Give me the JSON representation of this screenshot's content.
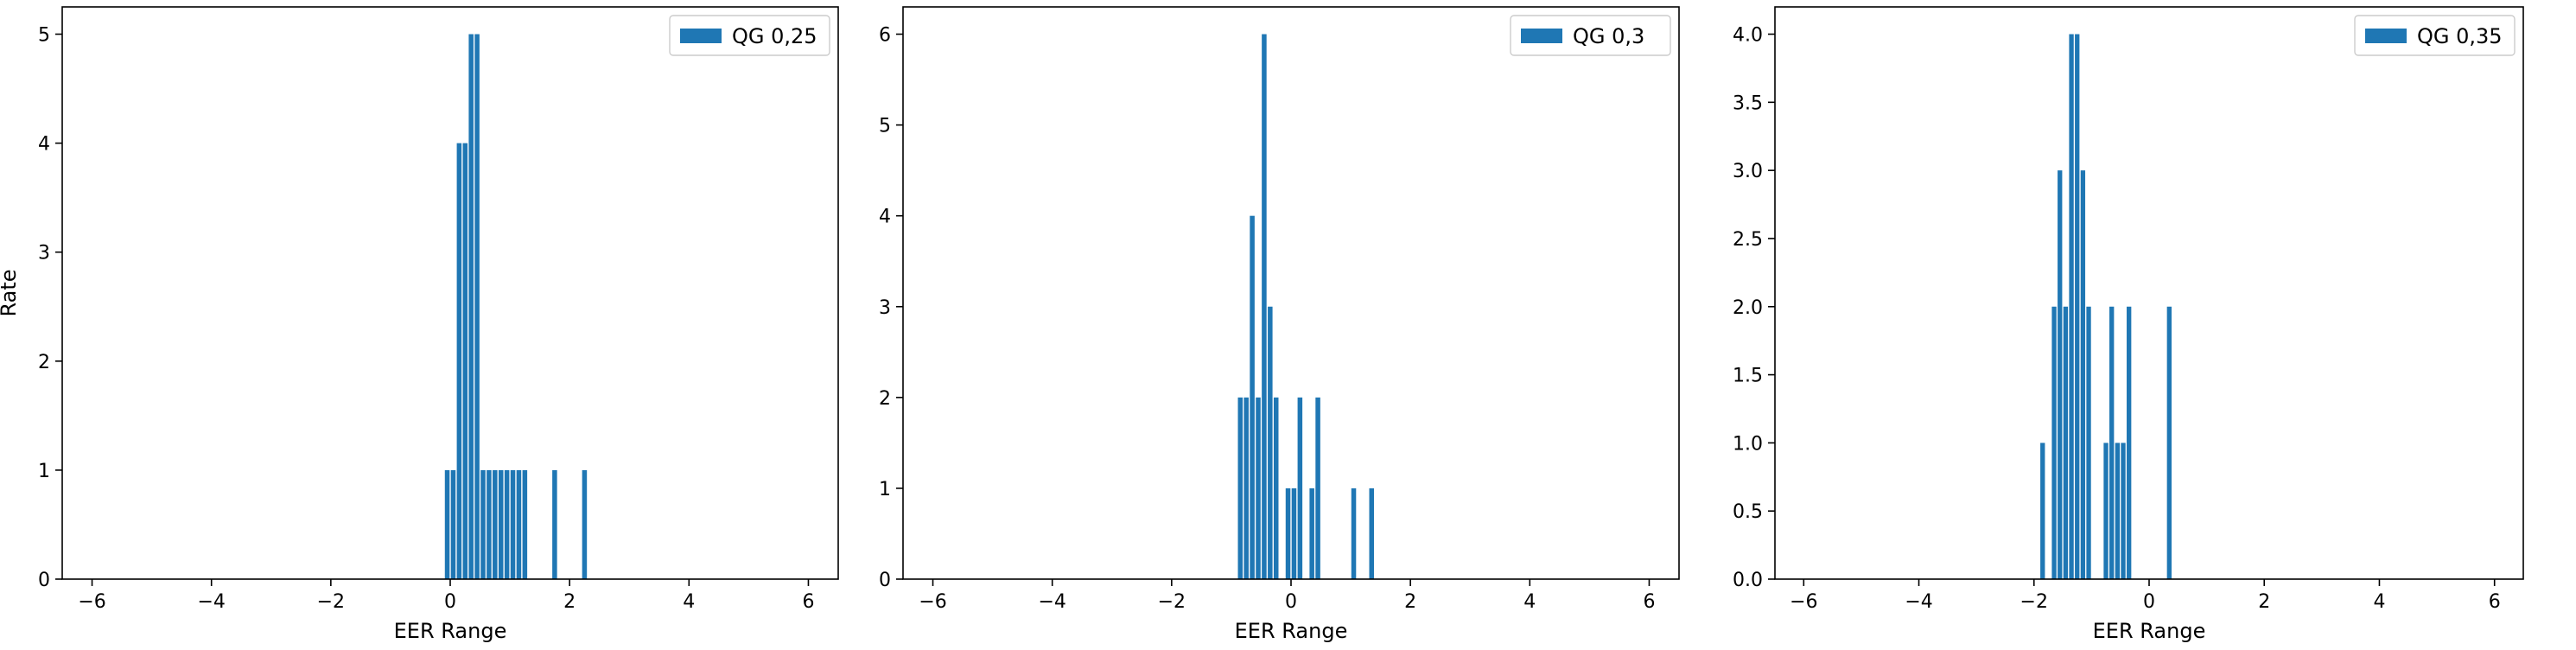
{
  "chart_data": [
    {
      "type": "bar",
      "x": [
        -0.05,
        0.05,
        0.15,
        0.25,
        0.35,
        0.45,
        0.55,
        0.65,
        0.75,
        0.85,
        0.95,
        1.05,
        1.15,
        1.25,
        1.75,
        2.25
      ],
      "values": [
        1,
        1,
        4,
        4,
        5,
        5,
        1,
        1,
        1,
        1,
        1,
        1,
        1,
        1,
        1,
        1
      ],
      "xlabel": "EER Range",
      "ylabel": "Rate",
      "xlim": [
        -6.5,
        6.5
      ],
      "ylim": [
        0,
        5.25
      ],
      "xticks": [
        -6,
        -4,
        -2,
        0,
        2,
        4,
        6
      ],
      "yticks": [
        0,
        1,
        2,
        3,
        4,
        5
      ],
      "ytick_labels": [
        "0",
        "1",
        "2",
        "3",
        "4",
        "5"
      ],
      "legend": {
        "label": "QG 0,25",
        "placement": "upper right"
      },
      "color": "#1f77b4",
      "grid": false
    },
    {
      "type": "bar",
      "x": [
        -0.85,
        -0.75,
        -0.65,
        -0.55,
        -0.45,
        -0.35,
        -0.25,
        -0.05,
        0.05,
        0.15,
        0.35,
        0.45,
        1.05,
        1.35
      ],
      "values": [
        2,
        2,
        4,
        2,
        6,
        3,
        2,
        1,
        1,
        2,
        1,
        2,
        1,
        1
      ],
      "xlabel": "EER Range",
      "ylabel": "",
      "xlim": [
        -6.5,
        6.5
      ],
      "ylim": [
        0,
        6.3
      ],
      "xticks": [
        -6,
        -4,
        -2,
        0,
        2,
        4,
        6
      ],
      "yticks": [
        0,
        1,
        2,
        3,
        4,
        5,
        6
      ],
      "ytick_labels": [
        "0",
        "1",
        "2",
        "3",
        "4",
        "5",
        "6"
      ],
      "legend": {
        "label": "QG 0,3",
        "placement": "upper right"
      },
      "color": "#1f77b4",
      "grid": false
    },
    {
      "type": "bar",
      "x": [
        -1.85,
        -1.65,
        -1.55,
        -1.45,
        -1.35,
        -1.25,
        -1.15,
        -1.05,
        -0.75,
        -0.65,
        -0.55,
        -0.45,
        -0.35,
        0.35
      ],
      "values": [
        1,
        2,
        3,
        2,
        4,
        4,
        3,
        2,
        1,
        2,
        1,
        1,
        2,
        2
      ],
      "xlabel": "EER Range",
      "ylabel": "",
      "xlim": [
        -6.5,
        6.5
      ],
      "ylim": [
        0,
        4.2
      ],
      "xticks": [
        -6,
        -4,
        -2,
        0,
        2,
        4,
        6
      ],
      "yticks": [
        0,
        0.5,
        1,
        1.5,
        2,
        2.5,
        3,
        3.5,
        4
      ],
      "ytick_labels": [
        "0.0",
        "0.5",
        "1.0",
        "1.5",
        "2.0",
        "2.5",
        "3.0",
        "3.5",
        "4.0"
      ],
      "legend": {
        "label": "QG 0,35",
        "placement": "upper right"
      },
      "color": "#1f77b4",
      "grid": false
    }
  ]
}
